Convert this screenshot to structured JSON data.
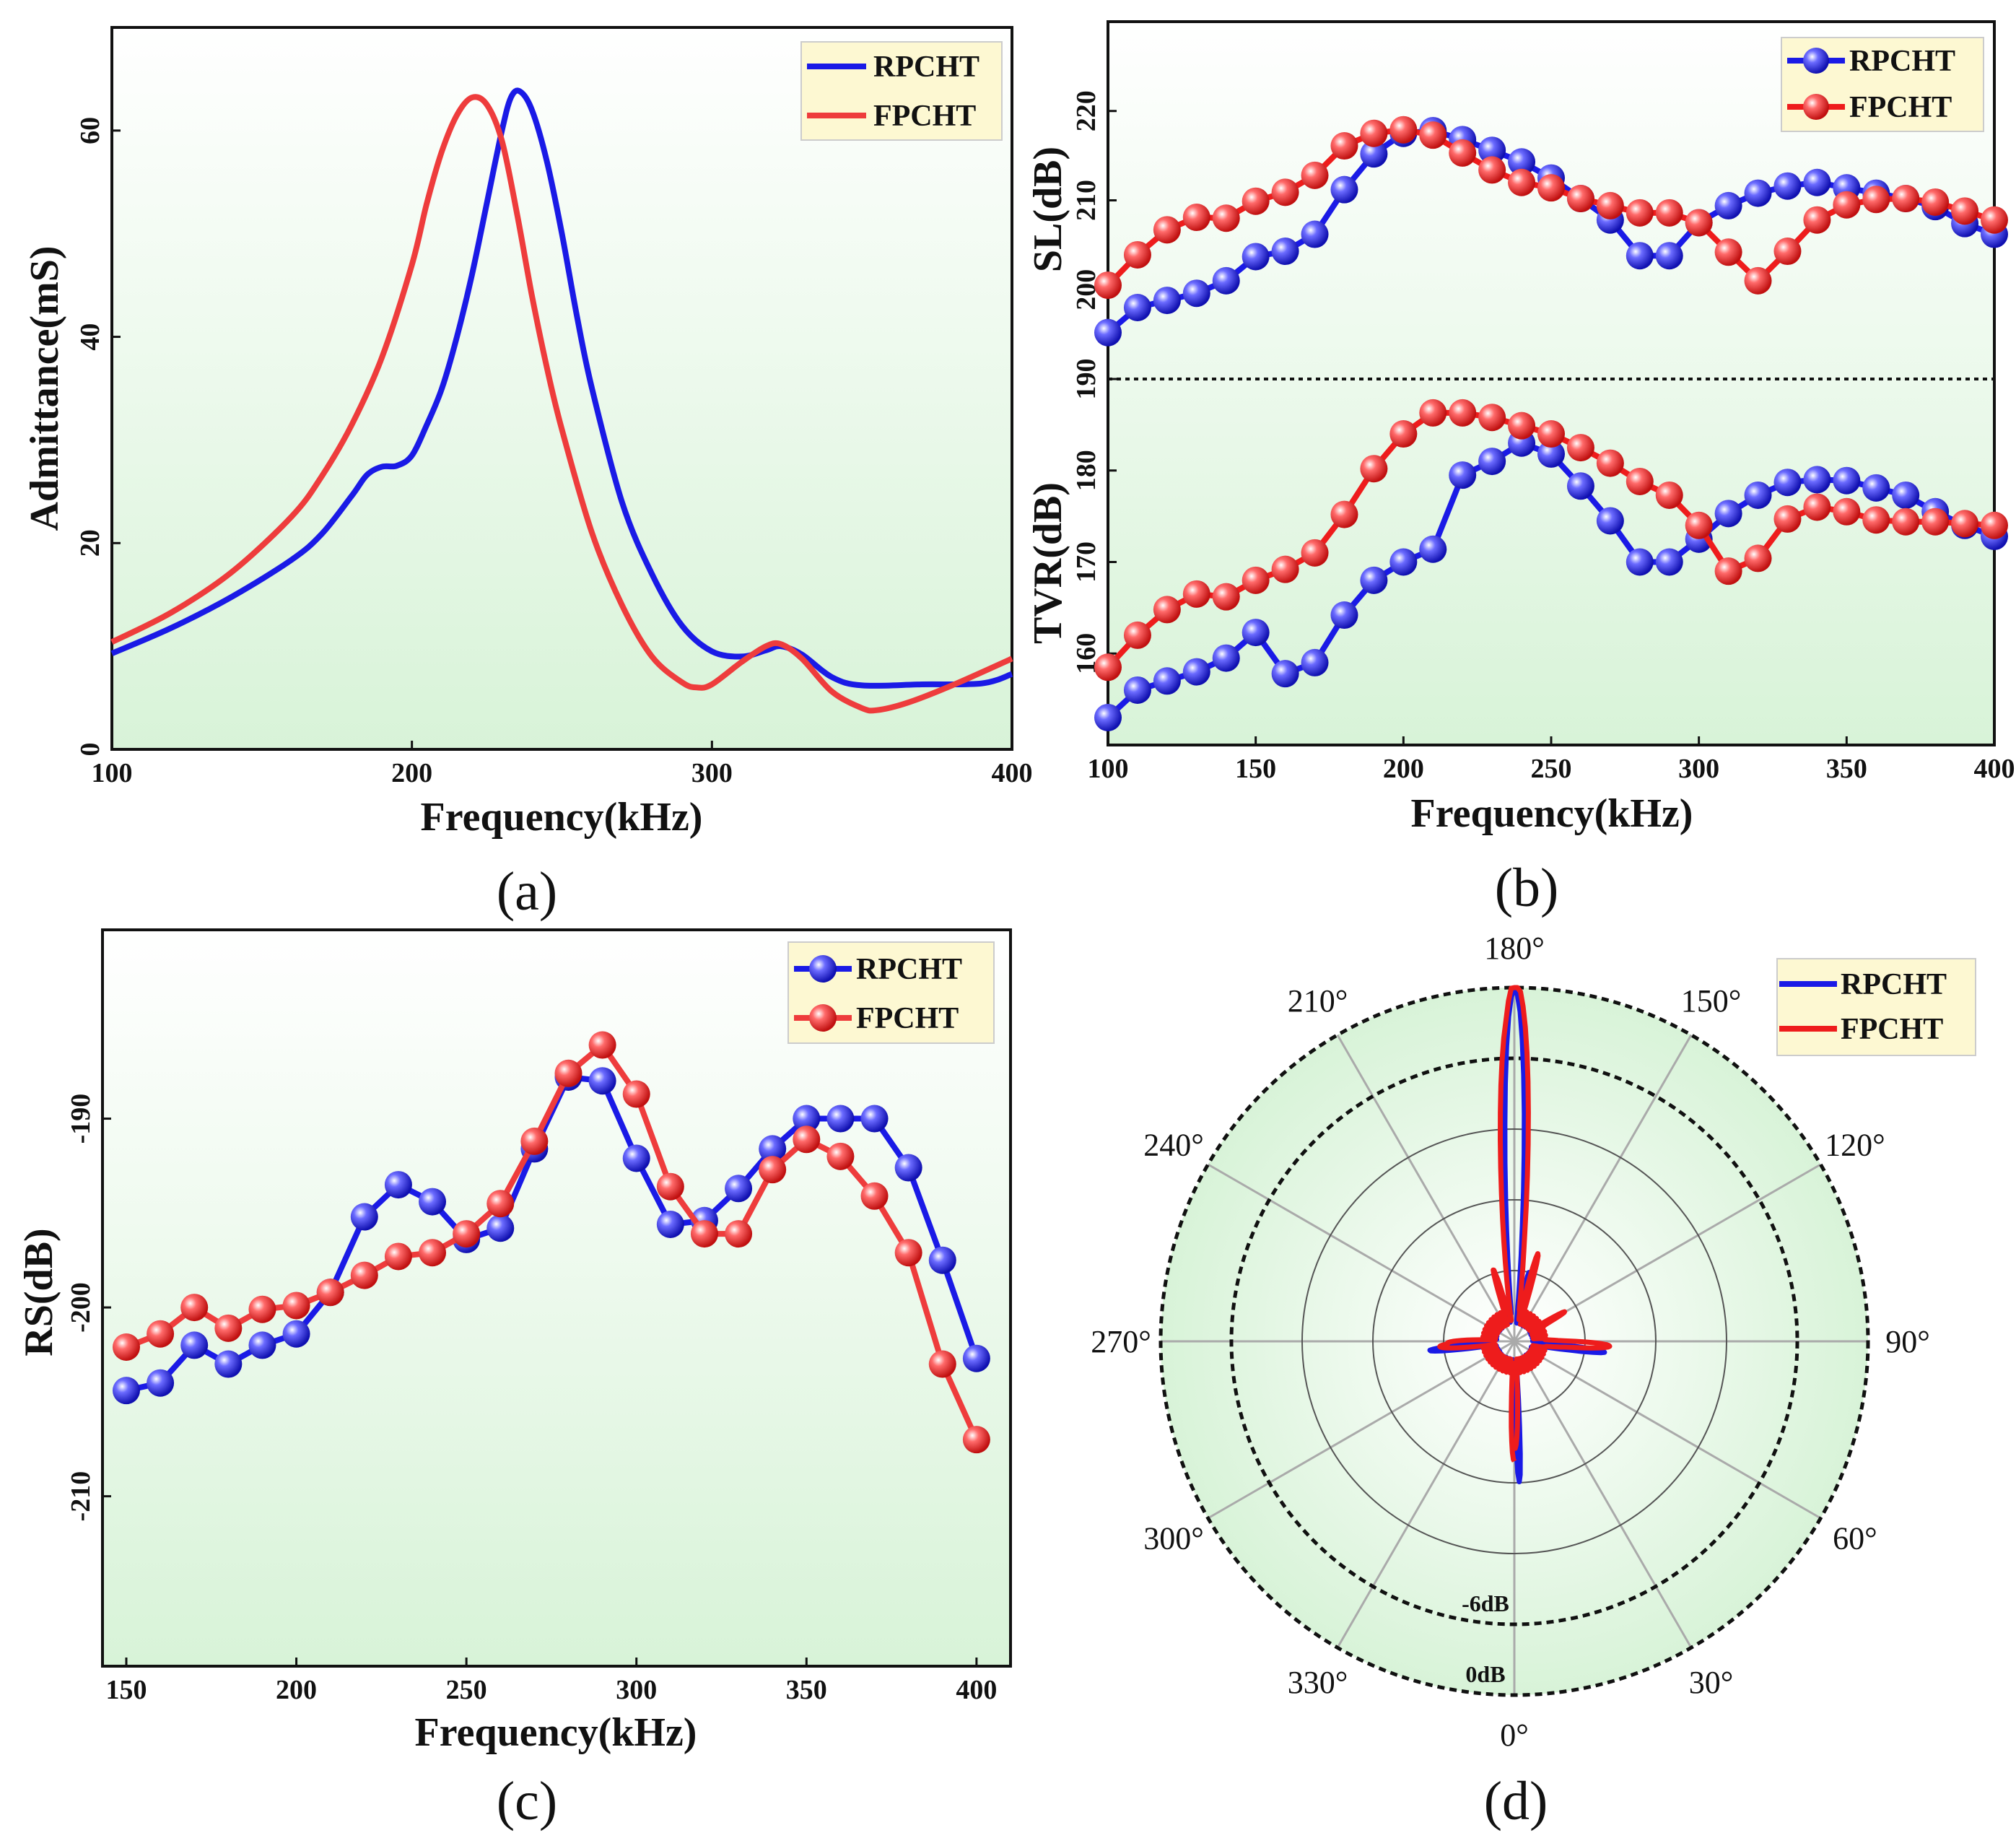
{
  "colors": {
    "blue": "#1a1ae6",
    "red": "#ee3c3c",
    "red_b": "#ee1c1c",
    "bg_top": "#ffffff",
    "bg_bottom": "#d8f3d8",
    "legend_bg": "#fdf8d2"
  },
  "chart_data": [
    {
      "id": "a",
      "type": "line",
      "panel_label": "(a)",
      "xlabel": "Frequency(kHz)",
      "ylabel": "Admittance(mS)",
      "xlim": [
        100,
        400
      ],
      "ylim": [
        0,
        70
      ],
      "xticks": [
        "100",
        "200",
        "300",
        "400"
      ],
      "yticks": [
        "0",
        "20",
        "40",
        "60"
      ],
      "legend": [
        "RPCHT",
        "FPCHT"
      ],
      "series": [
        {
          "name": "RPCHT",
          "color": "blue",
          "points": [
            [
              100,
              9.3
            ],
            [
              120,
              11.8
            ],
            [
              140,
              14.8
            ],
            [
              160,
              18.4
            ],
            [
              170,
              20.9
            ],
            [
              180,
              24.6
            ],
            [
              185,
              26.6
            ],
            [
              190,
              27.4
            ],
            [
              195,
              27.5
            ],
            [
              200,
              28.5
            ],
            [
              205,
              31.5
            ],
            [
              210,
              35
            ],
            [
              215,
              40
            ],
            [
              220,
              46
            ],
            [
              225,
              53
            ],
            [
              230,
              60
            ],
            [
              233,
              63.2
            ],
            [
              236,
              63.8
            ],
            [
              240,
              62
            ],
            [
              245,
              57
            ],
            [
              250,
              50
            ],
            [
              255,
              42
            ],
            [
              260,
              35
            ],
            [
              270,
              24
            ],
            [
              280,
              17
            ],
            [
              290,
              12
            ],
            [
              300,
              9.5
            ],
            [
              310,
              9
            ],
            [
              318,
              9.6
            ],
            [
              323,
              10
            ],
            [
              330,
              9.2
            ],
            [
              340,
              7
            ],
            [
              350,
              6.2
            ],
            [
              370,
              6.3
            ],
            [
              390,
              6.4
            ],
            [
              400,
              7.3
            ]
          ]
        },
        {
          "name": "FPCHT",
          "color": "red",
          "points": [
            [
              100,
              10.4
            ],
            [
              120,
              13.3
            ],
            [
              140,
              17.2
            ],
            [
              160,
              22.6
            ],
            [
              170,
              26.5
            ],
            [
              180,
              31.5
            ],
            [
              190,
              38
            ],
            [
              200,
              47
            ],
            [
              205,
              53
            ],
            [
              210,
              58
            ],
            [
              215,
              61.5
            ],
            [
              220,
              63.2
            ],
            [
              225,
              62.5
            ],
            [
              230,
              59
            ],
            [
              235,
              52
            ],
            [
              240,
              44
            ],
            [
              245,
              37
            ],
            [
              250,
              31
            ],
            [
              260,
              21
            ],
            [
              270,
              14
            ],
            [
              280,
              9
            ],
            [
              290,
              6.5
            ],
            [
              295,
              6
            ],
            [
              300,
              6.3
            ],
            [
              310,
              8.5
            ],
            [
              318,
              10
            ],
            [
              323,
              10.2
            ],
            [
              330,
              8.8
            ],
            [
              340,
              5.6
            ],
            [
              350,
              4
            ],
            [
              355,
              3.8
            ],
            [
              365,
              4.5
            ],
            [
              380,
              6.2
            ],
            [
              400,
              8.8
            ]
          ]
        }
      ]
    },
    {
      "id": "b_top",
      "type": "line",
      "ylabel": "SL(dB)",
      "xlim": [
        100,
        400
      ],
      "ylim": [
        190,
        230
      ],
      "yticks": [
        "190",
        "200",
        "210",
        "220"
      ],
      "legend": [
        "RPCHT",
        "FPCHT"
      ],
      "x": [
        100,
        110,
        120,
        130,
        140,
        150,
        160,
        170,
        180,
        190,
        200,
        210,
        220,
        230,
        240,
        250,
        260,
        270,
        280,
        290,
        300,
        310,
        320,
        330,
        340,
        350,
        360,
        370,
        380,
        390,
        400
      ],
      "series": [
        {
          "name": "RPCHT",
          "color": "blue",
          "values": [
            195.2,
            198,
            198.8,
            199.6,
            201,
            203.7,
            204.3,
            206.2,
            211.2,
            215.2,
            217.5,
            217.8,
            216.8,
            215.6,
            214.3,
            212.5,
            210.2,
            207.8,
            203.8,
            203.8,
            207.5,
            209.4,
            210.8,
            211.6,
            212,
            211.4,
            210.8,
            210.2,
            209.3,
            207.4,
            206.2
          ]
        },
        {
          "name": "FPCHT",
          "color": "red",
          "values": [
            200.5,
            203.9,
            206.7,
            208.1,
            208,
            209.9,
            210.9,
            212.8,
            216.1,
            217.5,
            217.9,
            217.3,
            215.3,
            213.4,
            212,
            211.4,
            210.2,
            209.4,
            208.6,
            208.6,
            207.5,
            204.2,
            201,
            204.3,
            207.8,
            209.5,
            210.1,
            210.2,
            209.8,
            208.8,
            207.8
          ]
        }
      ]
    },
    {
      "id": "b_bot",
      "type": "line",
      "panel_label": "(b)",
      "xlabel": "Frequency(kHz)",
      "ylabel": "TVR(dB)",
      "xlim": [
        100,
        400
      ],
      "ylim": [
        150,
        190
      ],
      "xticks": [
        "100",
        "150",
        "200",
        "250",
        "300",
        "350",
        "400"
      ],
      "yticks": [
        "160",
        "170",
        "180"
      ],
      "x": [
        100,
        110,
        120,
        130,
        140,
        150,
        160,
        170,
        180,
        190,
        200,
        210,
        220,
        230,
        240,
        250,
        260,
        270,
        280,
        290,
        300,
        310,
        320,
        330,
        340,
        350,
        360,
        370,
        380,
        390,
        400
      ],
      "series": [
        {
          "name": "RPCHT",
          "color": "blue",
          "values": [
            153,
            156,
            157,
            158,
            159.5,
            162.3,
            157.8,
            159,
            164.2,
            168,
            170,
            171.4,
            179.5,
            181,
            183,
            181.8,
            178.3,
            174.5,
            170,
            170,
            172.5,
            175.3,
            177.3,
            178.7,
            179,
            178.9,
            178.1,
            177.3,
            175.5,
            174,
            172.8
          ]
        },
        {
          "name": "FPCHT",
          "color": "red",
          "values": [
            158.5,
            162,
            164.8,
            166.5,
            166.2,
            168,
            169.2,
            171,
            175.2,
            180.2,
            184,
            186.3,
            186.3,
            185.8,
            184.9,
            184,
            182.5,
            180.8,
            178.8,
            177.3,
            174,
            169,
            170.4,
            174.7,
            176,
            175.5,
            174.6,
            174.4,
            174.4,
            174.2,
            174
          ]
        }
      ]
    },
    {
      "id": "c",
      "type": "line",
      "panel_label": "(c)",
      "xlabel": "Frequency(kHz)",
      "ylabel": "RS(dB)",
      "xlim": [
        143,
        410
      ],
      "ylim": [
        -219,
        -180
      ],
      "xticks": [
        "150",
        "200",
        "250",
        "300",
        "350",
        "400"
      ],
      "yticks": [
        "-190",
        "-200",
        "-210"
      ],
      "legend": [
        "RPCHT",
        "FPCHT"
      ],
      "x": [
        150,
        160,
        170,
        180,
        190,
        200,
        210,
        220,
        230,
        240,
        250,
        260,
        270,
        280,
        290,
        300,
        310,
        320,
        330,
        340,
        350,
        360,
        370,
        380,
        390,
        400
      ],
      "series": [
        {
          "name": "RPCHT",
          "color": "blue",
          "values": [
            -204.4,
            -204,
            -202,
            -203,
            -202,
            -201.4,
            -199.2,
            -195.2,
            -193.5,
            -194.4,
            -196.4,
            -195.8,
            -191.6,
            -187.8,
            -188,
            -192.1,
            -195.6,
            -195.4,
            -193.7,
            -191.6,
            -190,
            -190,
            -190,
            -192.6,
            -197.5,
            -202.7
          ]
        },
        {
          "name": "FPCHT",
          "color": "red",
          "values": [
            -202.1,
            -201.4,
            -200,
            -201.1,
            -200.1,
            -199.9,
            -199.2,
            -198.3,
            -197.3,
            -197.1,
            -196.1,
            -194.5,
            -191.2,
            -187.6,
            -186.1,
            -188.7,
            -193.6,
            -196.1,
            -196.1,
            -192.7,
            -191.1,
            -192,
            -194.1,
            -197.1,
            -203,
            -207
          ]
        }
      ]
    },
    {
      "id": "d",
      "type": "polar",
      "panel_label": "(d)",
      "angle_labels": [
        "0°",
        "30°",
        "60°",
        "90°",
        "120°",
        "150°",
        "180°",
        "210°",
        "240°",
        "270°",
        "300°",
        "330°"
      ],
      "ring_labels": [
        "-6dB",
        "0dB"
      ],
      "rlim": [
        -30,
        0
      ],
      "legend": [
        "RPCHT",
        "FPCHT"
      ],
      "series": [
        {
          "name": "RPCHT",
          "color": "blue"
        },
        {
          "name": "FPCHT",
          "color": "red_b"
        }
      ]
    }
  ]
}
